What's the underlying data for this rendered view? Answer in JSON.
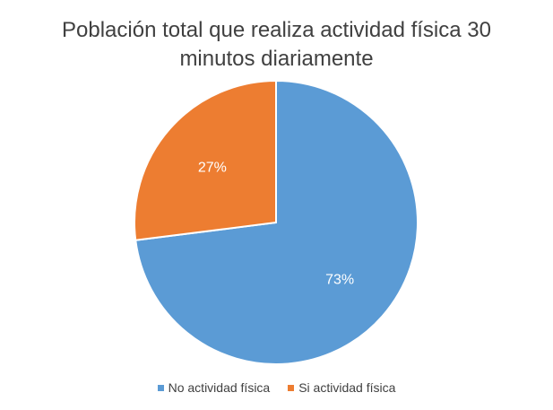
{
  "chart_data": {
    "type": "pie",
    "title_lines": [
      "Población total que realiza actividad física 30",
      "minutos diariamente"
    ],
    "slices": [
      {
        "name": "No actividad física",
        "value": 73,
        "label": "73%",
        "color": "#5B9BD5"
      },
      {
        "name": "Si actividad física",
        "value": 27,
        "label": "27%",
        "color": "#ED7D31"
      }
    ],
    "legend_position": "bottom"
  }
}
